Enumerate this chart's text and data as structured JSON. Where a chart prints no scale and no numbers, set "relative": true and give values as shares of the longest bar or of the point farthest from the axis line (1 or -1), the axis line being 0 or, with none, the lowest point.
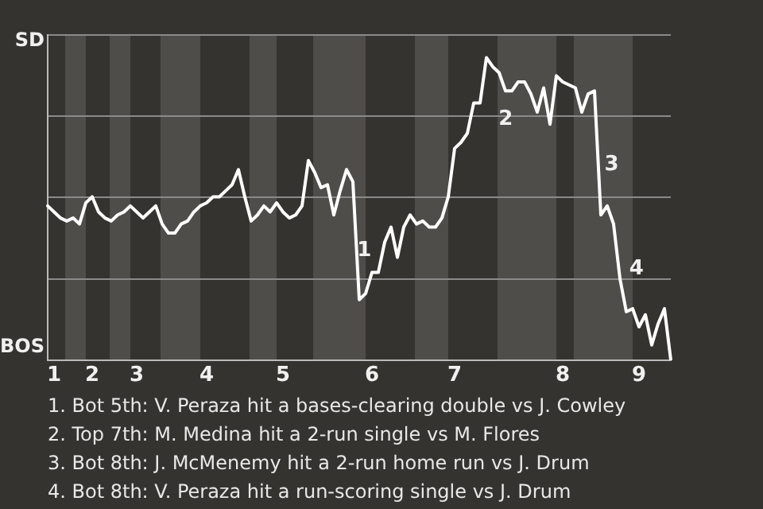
{
  "chart_data": {
    "type": "line",
    "relative": true,
    "categories": [
      null,
      "1",
      null,
      null,
      null,
      null,
      null,
      "2",
      null,
      null,
      null,
      null,
      null,
      null,
      "3",
      null,
      null,
      null,
      null,
      null,
      null,
      null,
      null,
      null,
      null,
      "4",
      null,
      null,
      null,
      null,
      null,
      null,
      null,
      null,
      null,
      null,
      null,
      "5",
      null,
      null,
      null,
      null,
      null,
      null,
      null,
      null,
      null,
      null,
      null,
      null,
      null,
      "6",
      null,
      null,
      null,
      null,
      null,
      null,
      null,
      null,
      null,
      null,
      null,
      null,
      "7",
      null,
      null,
      null,
      null,
      null,
      null,
      null,
      null,
      null,
      null,
      null,
      null,
      null,
      null,
      null,
      null,
      "8",
      null,
      null,
      null,
      null,
      null,
      null,
      null,
      null,
      null,
      null,
      null,
      "9",
      null,
      null,
      null,
      null,
      null
    ],
    "series": [
      {
        "color": "#ffffff",
        "values": [
          0.51,
          0.49,
          0.47,
          0.46,
          0.47,
          0.45,
          0.52,
          0.54,
          0.49,
          0.47,
          0.46,
          0.48,
          0.49,
          0.51,
          0.49,
          0.47,
          0.49,
          0.51,
          0.45,
          0.42,
          0.42,
          0.45,
          0.46,
          0.49,
          0.51,
          0.52,
          0.54,
          0.54,
          0.56,
          0.58,
          0.63,
          0.54,
          0.46,
          0.48,
          0.51,
          0.49,
          0.52,
          0.49,
          0.47,
          0.48,
          0.51,
          0.66,
          0.62,
          0.57,
          0.58,
          0.48,
          0.56,
          0.63,
          0.59,
          0.2,
          0.22,
          0.29,
          0.29,
          0.39,
          0.44,
          0.34,
          0.44,
          0.48,
          0.45,
          0.46,
          0.44,
          0.44,
          0.47,
          0.54,
          0.7,
          0.72,
          0.75,
          0.85,
          0.85,
          1,
          0.97,
          0.95,
          0.89,
          0.89,
          0.92,
          0.92,
          0.88,
          0.82,
          0.9,
          0.78,
          0.94,
          0.92,
          0.91,
          0.9,
          0.82,
          0.88,
          0.89,
          0.48,
          0.51,
          0.45,
          0.27,
          0.16,
          0.17,
          0.11,
          0.15,
          0.05,
          0.12,
          0.17,
          0
        ],
        "name": null
      }
    ],
    "grid": "y",
    "marker": "none",
    "line_style": "solid",
    "annotations": [
      "SD",
      "BOS",
      "1",
      "2",
      "3",
      "4",
      "1. Bot 5th: V. Peraza hit a bases-clearing double vs J. Cowley",
      "2. Top 7th: M. Medina hit a 2-run single vs M. Flores",
      "3. Bot 8th: J. McMenemy hit a 2-run home run vs J. Drum",
      "4. Bot 8th: V. Peraza hit a run-scoring single vs J. Drum"
    ]
  }
}
